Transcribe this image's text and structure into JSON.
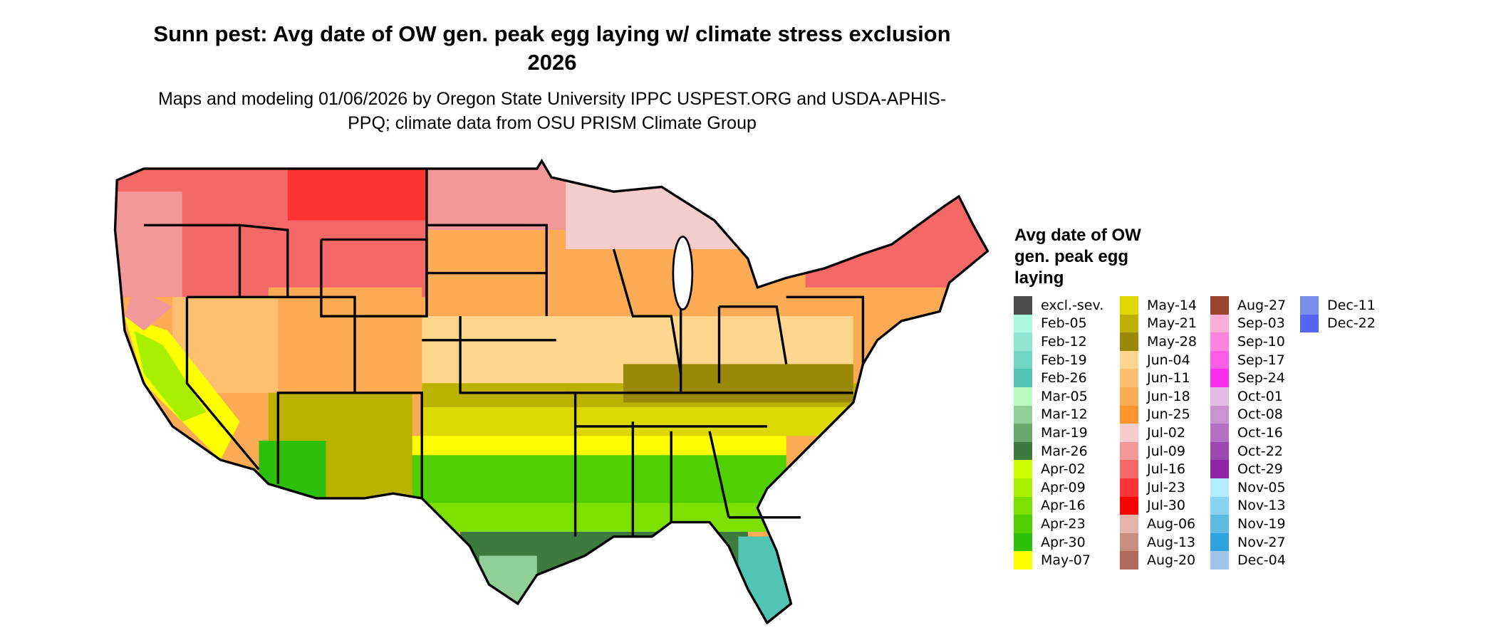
{
  "title": "Sunn pest: Avg date of OW gen. peak egg laying w/ climate stress exclusion 2026",
  "subtitle": "Maps and modeling 01/06/2026 by Oregon State University IPPC USPEST.ORG and USDA-APHIS-PPQ; climate data from OSU PRISM Climate Group",
  "chart_data": {
    "type": "heatmap",
    "title": "Sunn pest: Avg date of OW gen. peak egg laying w/ climate stress exclusion 2026",
    "region": "Contiguous United States",
    "legend_title": "Avg date of OW gen. peak egg laying",
    "legend_placement": "right",
    "legend": [
      {
        "label": "excl.-sev.",
        "color": "#4d4d4d"
      },
      {
        "label": "Feb-05",
        "color": "#aaf8e0"
      },
      {
        "label": "Feb-12",
        "color": "#90e6d2"
      },
      {
        "label": "Feb-19",
        "color": "#72d6c4"
      },
      {
        "label": "Feb-26",
        "color": "#52c4b4"
      },
      {
        "label": "Mar-05",
        "color": "#b8fcc0"
      },
      {
        "label": "Mar-12",
        "color": "#90d096"
      },
      {
        "label": "Mar-19",
        "color": "#68a86a"
      },
      {
        "label": "Mar-26",
        "color": "#3c7a3e"
      },
      {
        "label": "Apr-02",
        "color": "#ccff00"
      },
      {
        "label": "Apr-09",
        "color": "#a8f000"
      },
      {
        "label": "Apr-16",
        "color": "#7ce000"
      },
      {
        "label": "Apr-23",
        "color": "#50d000"
      },
      {
        "label": "Apr-30",
        "color": "#2cc00a"
      },
      {
        "label": "May-07",
        "color": "#ffff00"
      },
      {
        "label": "May-14",
        "color": "#dcd800"
      },
      {
        "label": "May-21",
        "color": "#bdb100"
      },
      {
        "label": "May-28",
        "color": "#9a8808"
      },
      {
        "label": "Jun-04",
        "color": "#fed68e"
      },
      {
        "label": "Jun-11",
        "color": "#fdc070"
      },
      {
        "label": "Jun-18",
        "color": "#fcab55"
      },
      {
        "label": "Jun-25",
        "color": "#fc9530"
      },
      {
        "label": "Jul-02",
        "color": "#f4cccc"
      },
      {
        "label": "Jul-09",
        "color": "#f29898"
      },
      {
        "label": "Jul-16",
        "color": "#f46868"
      },
      {
        "label": "Jul-23",
        "color": "#fc3434"
      },
      {
        "label": "Jul-30",
        "color": "#fe0000"
      },
      {
        "label": "Aug-06",
        "color": "#e4b4ac"
      },
      {
        "label": "Aug-13",
        "color": "#c88e82"
      },
      {
        "label": "Aug-20",
        "color": "#b06a5c"
      },
      {
        "label": "Aug-27",
        "color": "#9c4432"
      },
      {
        "label": "Sep-03",
        "color": "#fcaed6"
      },
      {
        "label": "Sep-10",
        "color": "#fc84de"
      },
      {
        "label": "Sep-17",
        "color": "#fc5ce6"
      },
      {
        "label": "Sep-24",
        "color": "#fc2cee"
      },
      {
        "label": "Oct-01",
        "color": "#e0bce4"
      },
      {
        "label": "Oct-08",
        "color": "#c894d0"
      },
      {
        "label": "Oct-16",
        "color": "#b470c4"
      },
      {
        "label": "Oct-22",
        "color": "#9c48b0"
      },
      {
        "label": "Oct-29",
        "color": "#8c24a4"
      },
      {
        "label": "Nov-05",
        "color": "#b0ecfc"
      },
      {
        "label": "Nov-13",
        "color": "#88d4f0"
      },
      {
        "label": "Nov-19",
        "color": "#5cbce4"
      },
      {
        "label": "Nov-27",
        "color": "#2ca4dc"
      },
      {
        "label": "Dec-04",
        "color": "#a0c4e8"
      },
      {
        "label": "Dec-11",
        "color": "#7890ec"
      },
      {
        "label": "Dec-22",
        "color": "#5464f4"
      }
    ]
  }
}
